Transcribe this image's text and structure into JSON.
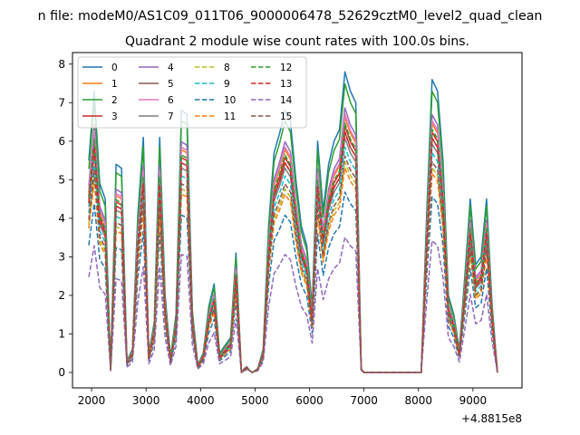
{
  "figure": {
    "suptitle": "n file: modeM0/AS1C09_011T06_9000006478_52629cztM0_level2_quad_clean",
    "title": "Quadrant 2 module wise count rates with 100.0s bins.",
    "offset_label": "+4.8815e8"
  },
  "chart_data": {
    "type": "line",
    "title": "Quadrant 2 module wise count rates with 100.0s bins.",
    "xlabel": "",
    "ylabel": "",
    "x_offset": 488150000,
    "xlim": [
      1650,
      9900
    ],
    "ylim": [
      -0.4,
      8.3
    ],
    "x_ticks": [
      2000,
      3000,
      4000,
      5000,
      6000,
      7000,
      8000,
      9000
    ],
    "y_ticks": [
      0,
      1,
      2,
      3,
      4,
      5,
      6,
      7,
      8
    ],
    "grid": false,
    "legend_location": "upper-left",
    "legend_columns": 4,
    "x": [
      1950,
      2050,
      2150,
      2250,
      2350,
      2450,
      2550,
      2650,
      2750,
      2850,
      2950,
      3050,
      3150,
      3250,
      3350,
      3450,
      3550,
      3650,
      3750,
      3850,
      3950,
      4050,
      4150,
      4250,
      4350,
      4450,
      4550,
      4650,
      4750,
      4800,
      4850,
      4900,
      4950,
      5050,
      5150,
      5250,
      5350,
      5450,
      5550,
      5650,
      5750,
      5850,
      5950,
      6050,
      6150,
      6250,
      6350,
      6450,
      6550,
      6650,
      6750,
      6850,
      6950,
      7000,
      7050,
      7100,
      7150,
      7250,
      7350,
      7450,
      7550,
      7650,
      7750,
      7850,
      7950,
      8050,
      8150,
      8250,
      8350,
      8450,
      8550,
      8650,
      8750,
      8850,
      8950,
      9050,
      9150,
      9250,
      9350,
      9450
    ],
    "base": [
      5.5,
      7.3,
      4.9,
      4.5,
      0.1,
      5.4,
      5.3,
      0.3,
      0.6,
      4.1,
      6.1,
      0.5,
      1.3,
      6.1,
      2.0,
      0.4,
      1.5,
      6.8,
      6.7,
      1.6,
      0.2,
      0.5,
      1.7,
      2.3,
      0.5,
      0.7,
      0.9,
      3.1,
      0.0,
      0.1,
      0.15,
      0.05,
      0.0,
      0.1,
      0.6,
      3.8,
      5.7,
      6.2,
      6.8,
      6.5,
      5.0,
      3.8,
      3.3,
      1.7,
      6.0,
      4.2,
      5.4,
      6.0,
      6.3,
      7.8,
      7.3,
      7.0,
      0.1,
      0.0,
      0.0,
      0.0,
      0.0,
      0.0,
      0.0,
      0.0,
      0.0,
      0.0,
      0.0,
      0.0,
      0.0,
      0.0,
      4.1,
      7.6,
      7.3,
      5.5,
      2.0,
      1.5,
      0.6,
      2.5,
      4.5,
      2.8,
      3.0,
      4.5,
      1.8,
      0.0
    ],
    "series": [
      {
        "name": "0",
        "color": "#1f77b4",
        "dash": "solid",
        "scale": 1.0
      },
      {
        "name": "1",
        "color": "#ff7f0e",
        "dash": "solid",
        "scale": 0.85
      },
      {
        "name": "2",
        "color": "#2ca02c",
        "dash": "solid",
        "scale": 0.96
      },
      {
        "name": "3",
        "color": "#d62728",
        "dash": "solid",
        "scale": 0.82
      },
      {
        "name": "4",
        "color": "#9467bd",
        "dash": "solid",
        "scale": 0.88
      },
      {
        "name": "5",
        "color": "#8c564b",
        "dash": "solid",
        "scale": 0.8
      },
      {
        "name": "6",
        "color": "#e377c2",
        "dash": "solid",
        "scale": 0.86
      },
      {
        "name": "7",
        "color": "#7f7f7f",
        "dash": "solid",
        "scale": 0.78
      },
      {
        "name": "8",
        "color": "#bcbd22",
        "dash": "dashed",
        "scale": 0.7
      },
      {
        "name": "9",
        "color": "#17becf",
        "dash": "dashed",
        "scale": 0.75
      },
      {
        "name": "10",
        "color": "#1f77b4",
        "dash": "dashed",
        "scale": 0.6
      },
      {
        "name": "11",
        "color": "#ff7f0e",
        "dash": "dashed",
        "scale": 0.68
      },
      {
        "name": "12",
        "color": "#2ca02c",
        "dash": "dashed",
        "scale": 0.83
      },
      {
        "name": "13",
        "color": "#d62728",
        "dash": "dashed",
        "scale": 0.8
      },
      {
        "name": "14",
        "color": "#9467bd",
        "dash": "dashed",
        "scale": 0.45
      },
      {
        "name": "15",
        "color": "#8c564b",
        "dash": "dashed",
        "scale": 0.72
      }
    ]
  }
}
